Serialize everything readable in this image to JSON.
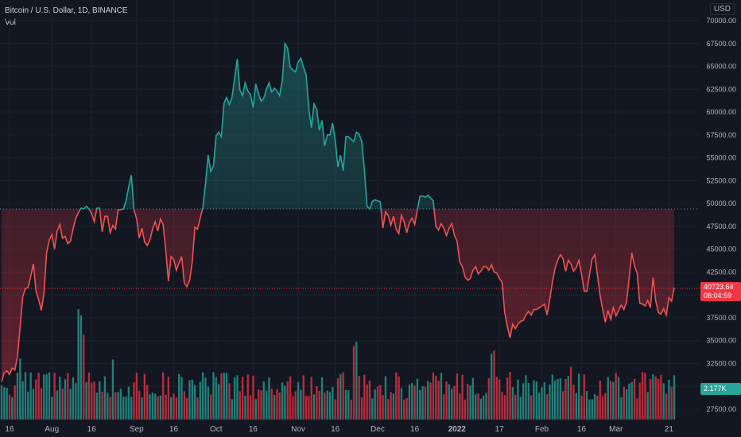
{
  "header": {
    "symbol": "Bitcoin / U.S. Dollar, 1D, BINANCE",
    "indicator": "Vol",
    "currency": "USD"
  },
  "price_tag": {
    "price": "40723.64",
    "countdown": "08:04:59"
  },
  "volume_tag": "2.177K",
  "colors": {
    "background": "#131722",
    "up": "#26a69a",
    "down": "#f23645",
    "line_down": "#ef5350",
    "line_up": "#26a69a",
    "grid": "#1e222d",
    "axis_text": "#b2b5be"
  },
  "chart_data": {
    "type": "line",
    "title": "Bitcoin / U.S. Dollar, 1D, BINANCE",
    "baseline": 49400,
    "last_price": 40723.64,
    "ylim": [
      26000,
      71000
    ],
    "x_ticks": [
      "16",
      "Aug",
      "16",
      "Sep",
      "16",
      "Oct",
      "16",
      "Nov",
      "16",
      "Dec",
      "16",
      "2022",
      "17",
      "Feb",
      "16",
      "Mar",
      "21"
    ],
    "y_ticks": [
      27500,
      30000,
      32500,
      35000,
      37500,
      40000,
      42500,
      45000,
      47500,
      50000,
      52500,
      55000,
      57500,
      60000,
      62500,
      65000,
      67500,
      70000
    ],
    "series": [
      {
        "values": [
          30500,
          31500,
          31700,
          31300,
          32000,
          31800,
          33300,
          36500,
          39800,
          40700,
          40800,
          42000,
          43400,
          40400,
          39500,
          38300,
          40200,
          44600,
          46000,
          46600,
          45000,
          47000,
          47700,
          46200,
          46400,
          45600,
          45900,
          47200,
          48400,
          49000,
          49500,
          49400,
          49700,
          49400,
          48900,
          48000,
          49500,
          49500,
          46900,
          48600,
          48600,
          46800,
          47600,
          47200,
          49300,
          49300,
          49400,
          50300,
          51800,
          53100,
          49300,
          48300,
          46200,
          47300,
          45800,
          45400,
          46000,
          47200,
          48000,
          47000,
          48300,
          47700,
          44900,
          41500,
          44200,
          43900,
          42700,
          43500,
          44200,
          41300,
          40900,
          41600,
          43600,
          47400,
          47200,
          48400,
          49500,
          52200,
          55300,
          53500,
          54100,
          57400,
          57800,
          57300,
          61000,
          61600,
          60800,
          61600,
          63700,
          65800,
          62400,
          61800,
          63200,
          62300,
          61900,
          60500,
          63100,
          62000,
          61200,
          61500,
          62500,
          63200,
          62200,
          62600,
          62300,
          61800,
          63500,
          67500,
          67000,
          64900,
          64600,
          64400,
          65500,
          65900,
          64900,
          64100,
          60400,
          58300,
          60900,
          60300,
          58000,
          59100,
          56300,
          57500,
          57500,
          58800,
          56900,
          54000,
          55300,
          53600,
          57300,
          57300,
          57000,
          56800,
          57800,
          57600,
          56800,
          53700,
          49700,
          49400,
          50200,
          50400,
          50300,
          50200,
          47300,
          49100,
          48700,
          47600,
          48600,
          47200,
          46700,
          48700,
          48000,
          46800,
          47900,
          48400,
          47700,
          49300,
          50800,
          50800,
          50700,
          50900,
          50600,
          50300,
          47500,
          47100,
          47800,
          47300,
          46500,
          47300,
          47800,
          46500,
          45900,
          43600,
          43100,
          42000,
          41600,
          41800,
          42700,
          43100,
          42300,
          42600,
          43100,
          43100,
          42700,
          43300,
          42500,
          42400,
          41800,
          41400,
          38100,
          36500,
          35300,
          36800,
          36300,
          36800,
          37100,
          37200,
          37800,
          38200,
          37800,
          38400,
          38400,
          38600,
          38800,
          39000,
          37800,
          39500,
          41400,
          42900,
          43800,
          44400,
          44000,
          42600,
          43800,
          43400,
          42600,
          43000,
          43800,
          42300,
          40400,
          40400,
          42200,
          43900,
          44400,
          42200,
          40000,
          38400,
          37000,
          38300,
          37300,
          38600,
          37700,
          38300,
          38900,
          38400,
          39200,
          41900,
          44600,
          43200,
          42400,
          39100,
          39000,
          38800,
          39400,
          38600,
          41900,
          39400,
          38100,
          37900,
          38500,
          37800,
          39700,
          39300,
          40800
        ]
      }
    ],
    "volume": {
      "label": "Vol",
      "last": "2.177K"
    }
  }
}
